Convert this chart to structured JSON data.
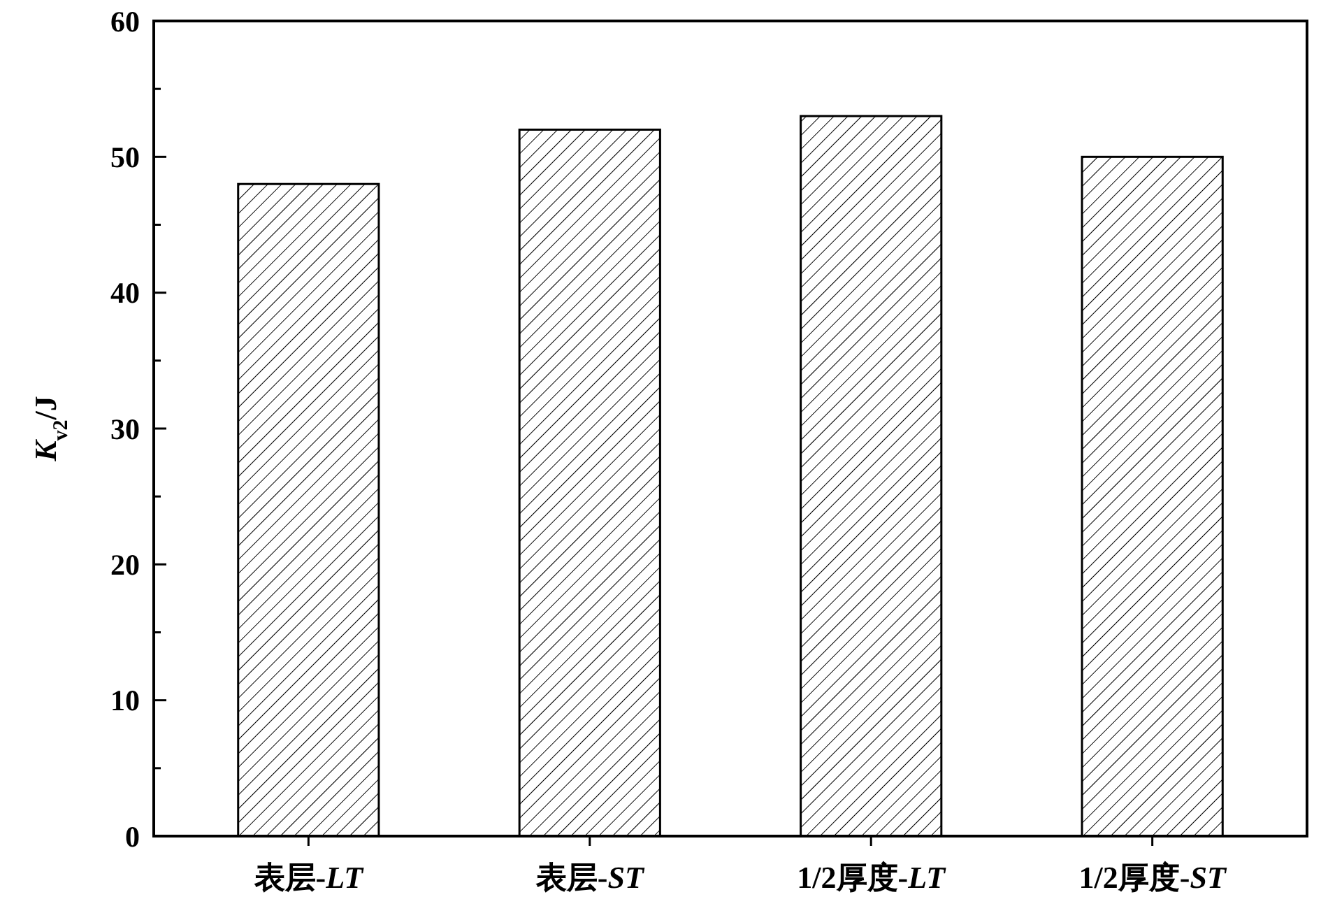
{
  "chart_data": {
    "type": "bar",
    "ylabel": "K$_{v2}$/J",
    "categories": [
      "表层-LT",
      "表层-ST",
      "1/2厚度-LT",
      "1/2厚度-ST"
    ],
    "values": [
      48,
      52,
      53,
      50
    ],
    "color": "#000000",
    "ylim": [
      0,
      60
    ],
    "yticks": [
      0,
      {
        "value": 5,
        "label": null
      },
      10,
      {
        "value": 15,
        "label": null
      },
      20,
      {
        "value": 25,
        "label": null
      },
      30,
      {
        "value": 35,
        "label": null
      },
      40,
      {
        "value": 45,
        "label": null
      },
      50,
      {
        "value": 55,
        "label": null
      },
      60
    ],
    "grid": false
  }
}
